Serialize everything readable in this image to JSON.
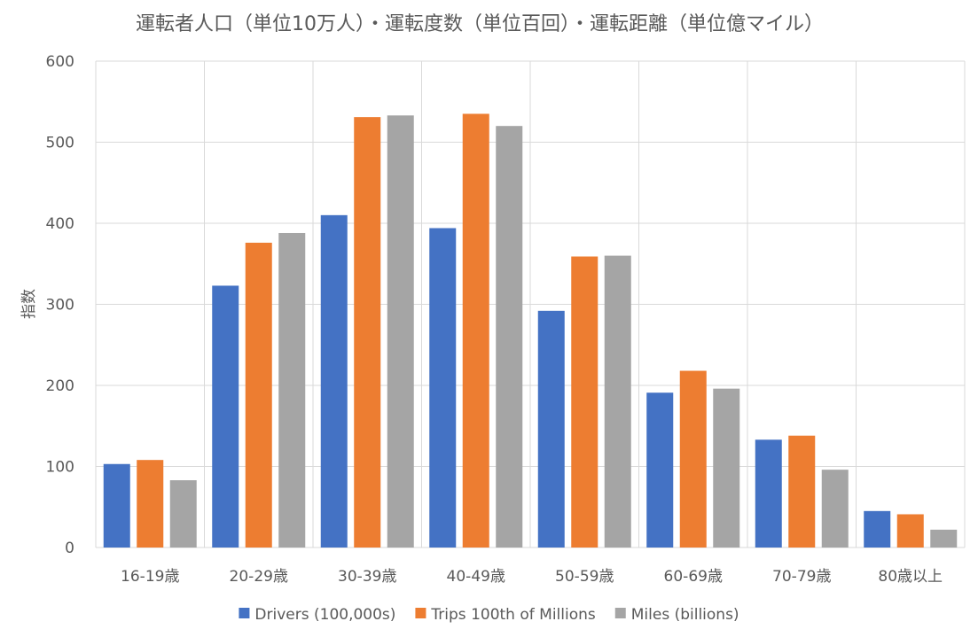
{
  "chart_data": {
    "type": "bar",
    "title": "運転者人口（単位10万人）・運転度数（単位百回）・運転距離（単位億マイル）",
    "xlabel": "",
    "ylabel": "指数",
    "ylim": [
      0,
      600
    ],
    "yticks": [
      0,
      100,
      200,
      300,
      400,
      500,
      600
    ],
    "grid": true,
    "legend_position": "bottom",
    "categories": [
      "16-19歳",
      "20-29歳",
      "30-39歳",
      "40-49歳",
      "50-59歳",
      "60-69歳",
      "70-79歳",
      "80歳以上"
    ],
    "series": [
      {
        "name": "Drivers (100,000s)",
        "color": "#4472C4",
        "values": [
          103,
          323,
          410,
          394,
          292,
          191,
          133,
          45
        ]
      },
      {
        "name": "Trips 100th of Millions",
        "color": "#ED7D31",
        "values": [
          108,
          376,
          531,
          535,
          359,
          218,
          138,
          41
        ]
      },
      {
        "name": "Miles (billions)",
        "color": "#A5A5A5",
        "values": [
          83,
          388,
          533,
          520,
          360,
          196,
          96,
          22
        ]
      }
    ]
  },
  "colors": {
    "text": "#595959",
    "gridline": "#D9D9D9",
    "background": "#FFFFFF"
  }
}
